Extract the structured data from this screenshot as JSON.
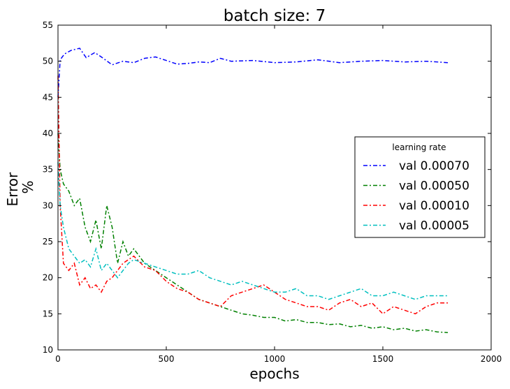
{
  "chart_data": {
    "type": "line",
    "title": "batch size: 7",
    "xlabel": "epochs",
    "ylabel_lines": [
      "Error",
      "%"
    ],
    "xlim": [
      0,
      2000
    ],
    "ylim": [
      10,
      55
    ],
    "xticks": [
      0,
      500,
      1000,
      1500,
      2000
    ],
    "yticks": [
      10,
      15,
      20,
      25,
      30,
      35,
      40,
      45,
      50,
      55
    ],
    "grid": false,
    "legend": {
      "title": "learning rate",
      "placement": "center-right"
    },
    "series": [
      {
        "name": "val 0.00070",
        "color": "#0000ff",
        "style": "dashdot",
        "x": [
          0,
          10,
          30,
          60,
          100,
          130,
          170,
          200,
          250,
          300,
          350,
          400,
          450,
          500,
          550,
          600,
          650,
          700,
          750,
          800,
          900,
          1000,
          1100,
          1200,
          1300,
          1400,
          1500,
          1600,
          1700,
          1800
        ],
        "y": [
          45.0,
          50.2,
          51.0,
          51.5,
          51.8,
          50.5,
          51.2,
          50.6,
          49.5,
          50.0,
          49.8,
          50.4,
          50.6,
          50.1,
          49.6,
          49.7,
          49.9,
          49.8,
          50.4,
          50.0,
          50.1,
          49.8,
          49.9,
          50.2,
          49.8,
          50.0,
          50.1,
          49.9,
          50.0,
          49.8
        ]
      },
      {
        "name": "val 0.00050",
        "color": "#008000",
        "style": "dashdot",
        "x": [
          0,
          10,
          25,
          50,
          75,
          100,
          125,
          150,
          175,
          200,
          225,
          250,
          275,
          300,
          325,
          350,
          400,
          450,
          500,
          550,
          600,
          650,
          700,
          750,
          800,
          850,
          900,
          950,
          1000,
          1050,
          1100,
          1150,
          1200,
          1250,
          1300,
          1350,
          1400,
          1450,
          1500,
          1550,
          1600,
          1650,
          1700,
          1750,
          1800
        ],
        "y": [
          40.0,
          35.0,
          33.0,
          32.0,
          30.0,
          31.0,
          27.0,
          25.0,
          28.0,
          24.0,
          30.0,
          27.0,
          22.0,
          25.0,
          23.0,
          24.0,
          22.0,
          21.0,
          20.0,
          19.0,
          18.0,
          17.0,
          16.5,
          16.0,
          15.5,
          15.0,
          14.8,
          14.5,
          14.5,
          14.0,
          14.2,
          13.8,
          13.8,
          13.5,
          13.6,
          13.2,
          13.4,
          13.0,
          13.2,
          12.8,
          13.0,
          12.6,
          12.8,
          12.5,
          12.4
        ]
      },
      {
        "name": "val 0.00010",
        "color": "#ff0000",
        "style": "dashdot",
        "x": [
          0,
          10,
          25,
          50,
          75,
          100,
          125,
          150,
          175,
          200,
          225,
          250,
          275,
          300,
          325,
          350,
          400,
          450,
          500,
          550,
          600,
          650,
          700,
          750,
          800,
          850,
          900,
          950,
          1000,
          1050,
          1100,
          1150,
          1200,
          1250,
          1300,
          1350,
          1400,
          1450,
          1500,
          1550,
          1600,
          1650,
          1700,
          1750,
          1800
        ],
        "y": [
          48.0,
          30.0,
          22.0,
          21.0,
          22.0,
          19.0,
          20.0,
          18.5,
          19.0,
          18.0,
          19.5,
          20.0,
          21.0,
          22.0,
          22.5,
          23.0,
          21.5,
          21.0,
          19.5,
          18.5,
          18.0,
          17.0,
          16.5,
          16.0,
          17.5,
          18.0,
          18.5,
          19.0,
          18.0,
          17.0,
          16.5,
          16.0,
          16.0,
          15.5,
          16.5,
          17.0,
          16.0,
          16.5,
          15.0,
          16.0,
          15.5,
          15.0,
          16.0,
          16.5,
          16.5
        ]
      },
      {
        "name": "val 0.00005",
        "color": "#00bfbf",
        "style": "dashdot",
        "x": [
          0,
          10,
          25,
          50,
          75,
          100,
          125,
          150,
          175,
          200,
          225,
          250,
          275,
          300,
          325,
          350,
          400,
          450,
          500,
          550,
          600,
          650,
          700,
          750,
          800,
          850,
          900,
          950,
          1000,
          1050,
          1100,
          1150,
          1200,
          1250,
          1300,
          1350,
          1400,
          1450,
          1500,
          1550,
          1600,
          1650,
          1700,
          1750,
          1800
        ],
        "y": [
          36.0,
          30.0,
          27.0,
          24.0,
          23.0,
          22.0,
          22.5,
          21.5,
          24.0,
          21.0,
          22.0,
          21.0,
          20.0,
          21.0,
          22.0,
          22.5,
          22.0,
          21.5,
          21.0,
          20.5,
          20.5,
          21.0,
          20.0,
          19.5,
          19.0,
          19.5,
          19.0,
          18.5,
          18.0,
          18.0,
          18.5,
          17.5,
          17.5,
          17.0,
          17.5,
          18.0,
          18.5,
          17.5,
          17.5,
          18.0,
          17.5,
          17.0,
          17.5,
          17.5,
          17.5
        ]
      }
    ]
  }
}
